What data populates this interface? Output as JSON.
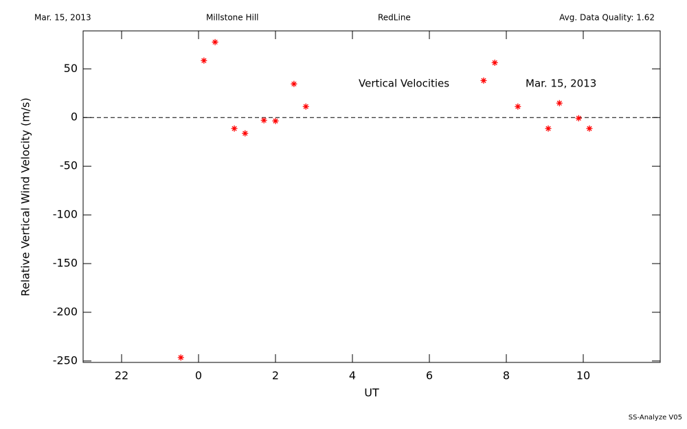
{
  "header": {
    "date": "Mar. 15, 2013",
    "site": "Millstone Hill",
    "line": "RedLine",
    "quality": "Avg. Data Quality: 1.62"
  },
  "footer": "SS-Analyze V05",
  "chart_data": {
    "type": "scatter",
    "x_label": "UT",
    "y_label": "Relative Vertical Wind Velocity (m/s)",
    "annotations": [
      "Vertical Velocities",
      "Mar. 15, 2013"
    ],
    "xlim": [
      -3,
      12
    ],
    "ylim": [
      -251.5,
      89
    ],
    "xticks": [
      {
        "value": -2,
        "label": "22"
      },
      0,
      2,
      4,
      6,
      8,
      10
    ],
    "yticks": [
      -250,
      -200,
      -150,
      -100,
      -50,
      0,
      50
    ],
    "series": [
      {
        "color": "#ff0000",
        "x": [
          -0.46,
          0.14,
          0.43,
          0.93,
          1.21,
          1.7,
          2.0,
          2.48,
          2.79,
          7.41,
          7.7,
          8.3,
          9.09,
          9.38,
          9.88,
          10.16
        ],
        "values": [
          -246.5,
          58.5,
          77.5,
          -11.3,
          -16.2,
          -2.8,
          -3.5,
          34.5,
          11.3,
          38,
          56.3,
          11.3,
          -11.3,
          14.8,
          -0.7,
          -11.3
        ]
      }
    ]
  }
}
